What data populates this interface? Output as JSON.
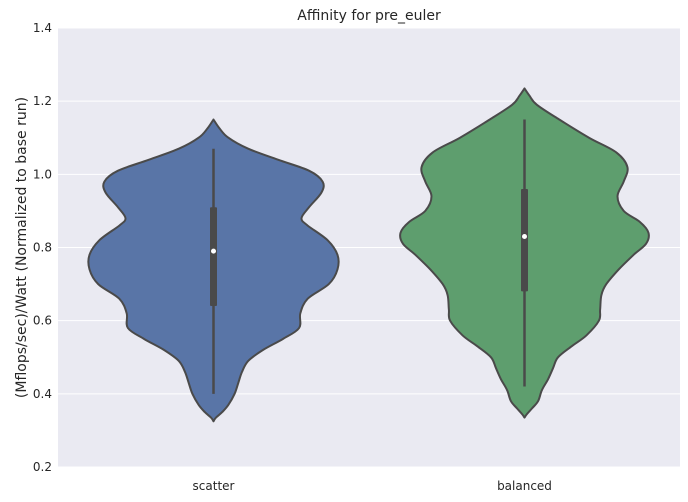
{
  "chart_data": {
    "type": "violin",
    "title": "Affinity for pre_euler",
    "xlabel": "",
    "ylabel": "(Mflops/sec)/Watt (Normalized to base run)",
    "categories": [
      "scatter",
      "balanced"
    ],
    "ylim": [
      0.2,
      1.4
    ],
    "yticks": [
      0.2,
      0.4,
      0.6,
      0.8,
      1.0,
      1.2,
      1.4
    ],
    "ytick_labels": [
      "0.2",
      "0.4",
      "0.6",
      "0.8",
      "1.0",
      "1.2",
      "1.4"
    ],
    "grid": true,
    "background": "#EAEAF2",
    "series": [
      {
        "color": "#5975A7",
        "whisker": [
          0.4,
          1.07
        ],
        "box": [
          0.64,
          0.91
        ],
        "median": 0.79,
        "violin_profile": [
          [
            0.325,
            0.0
          ],
          [
            0.335,
            0.02
          ],
          [
            0.35,
            0.07
          ],
          [
            0.37,
            0.12
          ],
          [
            0.4,
            0.17
          ],
          [
            0.43,
            0.2
          ],
          [
            0.46,
            0.23
          ],
          [
            0.49,
            0.28
          ],
          [
            0.52,
            0.4
          ],
          [
            0.55,
            0.56
          ],
          [
            0.58,
            0.69
          ],
          [
            0.62,
            0.7
          ],
          [
            0.66,
            0.76
          ],
          [
            0.7,
            0.93
          ],
          [
            0.74,
            1.0
          ],
          [
            0.78,
            1.0
          ],
          [
            0.82,
            0.92
          ],
          [
            0.86,
            0.76
          ],
          [
            0.88,
            0.71
          ],
          [
            0.91,
            0.77
          ],
          [
            0.95,
            0.87
          ],
          [
            0.98,
            0.88
          ],
          [
            1.01,
            0.77
          ],
          [
            1.04,
            0.52
          ],
          [
            1.07,
            0.28
          ],
          [
            1.1,
            0.12
          ],
          [
            1.125,
            0.05
          ],
          [
            1.15,
            0.0
          ]
        ]
      },
      {
        "color": "#5E9E6E",
        "whisker": [
          0.42,
          1.15
        ],
        "box": [
          0.68,
          0.96
        ],
        "median": 0.83,
        "violin_profile": [
          [
            0.335,
            0.0
          ],
          [
            0.345,
            0.02
          ],
          [
            0.36,
            0.06
          ],
          [
            0.38,
            0.11
          ],
          [
            0.41,
            0.14
          ],
          [
            0.44,
            0.19
          ],
          [
            0.47,
            0.23
          ],
          [
            0.5,
            0.27
          ],
          [
            0.53,
            0.38
          ],
          [
            0.56,
            0.5
          ],
          [
            0.6,
            0.6
          ],
          [
            0.63,
            0.61
          ],
          [
            0.67,
            0.62
          ],
          [
            0.7,
            0.66
          ],
          [
            0.74,
            0.76
          ],
          [
            0.78,
            0.88
          ],
          [
            0.81,
            0.98
          ],
          [
            0.84,
            1.0
          ],
          [
            0.87,
            0.93
          ],
          [
            0.9,
            0.8
          ],
          [
            0.94,
            0.75
          ],
          [
            0.98,
            0.8
          ],
          [
            1.02,
            0.83
          ],
          [
            1.06,
            0.74
          ],
          [
            1.1,
            0.52
          ],
          [
            1.15,
            0.28
          ],
          [
            1.19,
            0.1
          ],
          [
            1.215,
            0.04
          ],
          [
            1.235,
            0.0
          ]
        ]
      }
    ]
  }
}
